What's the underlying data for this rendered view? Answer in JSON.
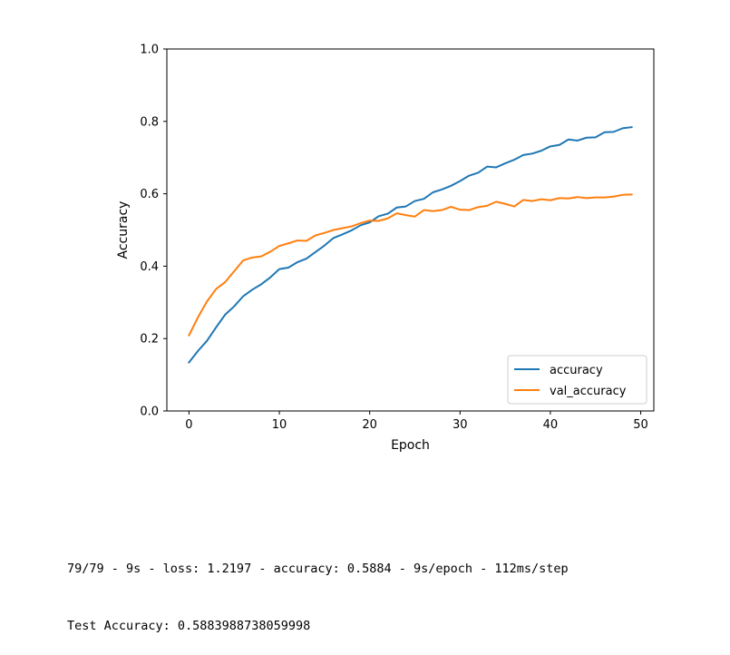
{
  "chart_data": {
    "type": "line",
    "xlabel": "Epoch",
    "ylabel": "Accuracy",
    "xlim": [
      -2.45,
      51.45
    ],
    "ylim": [
      0.0,
      1.0
    ],
    "x_ticks": [
      0,
      10,
      20,
      30,
      40,
      50
    ],
    "y_ticks": [
      0.0,
      0.2,
      0.4,
      0.6,
      0.8,
      1.0
    ],
    "x_tick_labels": [
      "0",
      "10",
      "20",
      "30",
      "40",
      "50"
    ],
    "y_tick_labels": [
      "0.0",
      "0.2",
      "0.4",
      "0.6",
      "0.8",
      "1.0"
    ],
    "grid": false,
    "legend_position": "lower-right",
    "x": [
      0,
      1,
      2,
      3,
      4,
      5,
      6,
      7,
      8,
      9,
      10,
      11,
      12,
      13,
      14,
      15,
      16,
      17,
      18,
      19,
      20,
      21,
      22,
      23,
      24,
      25,
      26,
      27,
      28,
      29,
      30,
      31,
      32,
      33,
      34,
      35,
      36,
      37,
      38,
      39,
      40,
      41,
      42,
      43,
      44,
      45,
      46,
      47,
      48,
      49
    ],
    "series": [
      {
        "name": "accuracy",
        "color": "#1f77b4",
        "values": [
          0.134,
          0.166,
          0.194,
          0.231,
          0.266,
          0.289,
          0.317,
          0.335,
          0.35,
          0.369,
          0.392,
          0.396,
          0.411,
          0.421,
          0.439,
          0.457,
          0.478,
          0.488,
          0.499,
          0.513,
          0.521,
          0.538,
          0.545,
          0.562,
          0.565,
          0.58,
          0.586,
          0.604,
          0.612,
          0.622,
          0.635,
          0.65,
          0.658,
          0.675,
          0.673,
          0.684,
          0.694,
          0.707,
          0.711,
          0.719,
          0.731,
          0.735,
          0.75,
          0.747,
          0.755,
          0.756,
          0.77,
          0.771,
          0.781,
          0.784
        ]
      },
      {
        "name": "val_accuracy",
        "color": "#ff7f0e",
        "values": [
          0.209,
          0.259,
          0.303,
          0.337,
          0.356,
          0.386,
          0.416,
          0.424,
          0.427,
          0.44,
          0.456,
          0.463,
          0.471,
          0.47,
          0.485,
          0.492,
          0.5,
          0.505,
          0.51,
          0.519,
          0.526,
          0.525,
          0.532,
          0.546,
          0.541,
          0.537,
          0.555,
          0.552,
          0.555,
          0.564,
          0.556,
          0.555,
          0.563,
          0.567,
          0.578,
          0.572,
          0.565,
          0.583,
          0.58,
          0.585,
          0.582,
          0.588,
          0.587,
          0.591,
          0.588,
          0.59,
          0.59,
          0.592,
          0.597,
          0.598
        ]
      }
    ]
  },
  "console": {
    "line1": "79/79 - 9s - loss: 1.2197 - accuracy: 0.5884 - 9s/epoch - 112ms/step",
    "line2": "Test Accuracy: 0.5883988738059998"
  }
}
